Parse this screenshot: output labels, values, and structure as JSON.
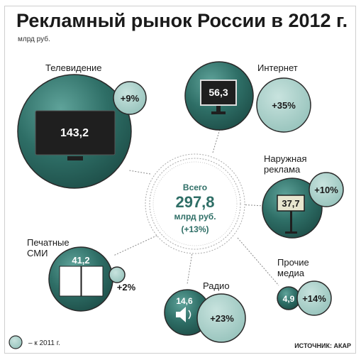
{
  "header": {
    "title": "Рекламный рынок России в 2012 г.",
    "subtitle": "млрд руб."
  },
  "total": {
    "label": "Всего",
    "value": "297,8",
    "unit": "млрд руб.",
    "change": "(+13%)"
  },
  "legend": {
    "text": "– к 2011 г."
  },
  "source": "ИСТОЧНИК: АКАР",
  "colors": {
    "dark_teal": "#2e6e66",
    "light_teal": "#a9cfc9",
    "screen": "#1f1f1f"
  },
  "chart_data": {
    "type": "bubble",
    "title": "Рекламный рынок России в 2012 г.",
    "unit": "млрд руб.",
    "total": {
      "value": 297.8,
      "change_pct": 13
    },
    "items": [
      {
        "name": "Телевидение",
        "value": 143.2,
        "value_label": "143,2",
        "change": "+9%",
        "change_pct": 9,
        "icon": "tv-icon"
      },
      {
        "name": "Интернет",
        "value": 56.3,
        "value_label": "56,3",
        "change": "+35%",
        "change_pct": 35,
        "icon": "monitor-icon"
      },
      {
        "name": "Наружная реклама",
        "value": 37.7,
        "value_label": "37,7",
        "change": "+10%",
        "change_pct": 10,
        "icon": "billboard-icon"
      },
      {
        "name": "Печатные СМИ",
        "value": 41.2,
        "value_label": "41,2",
        "change": "+2%",
        "change_pct": 2,
        "icon": "book-icon"
      },
      {
        "name": "Радио",
        "value": 14.6,
        "value_label": "14,6",
        "change": "+23%",
        "change_pct": 23,
        "icon": "speaker-icon"
      },
      {
        "name": "Прочие медиа",
        "value": 4.9,
        "value_label": "4,9",
        "change": "+14%",
        "change_pct": 14,
        "icon": "none"
      }
    ]
  }
}
